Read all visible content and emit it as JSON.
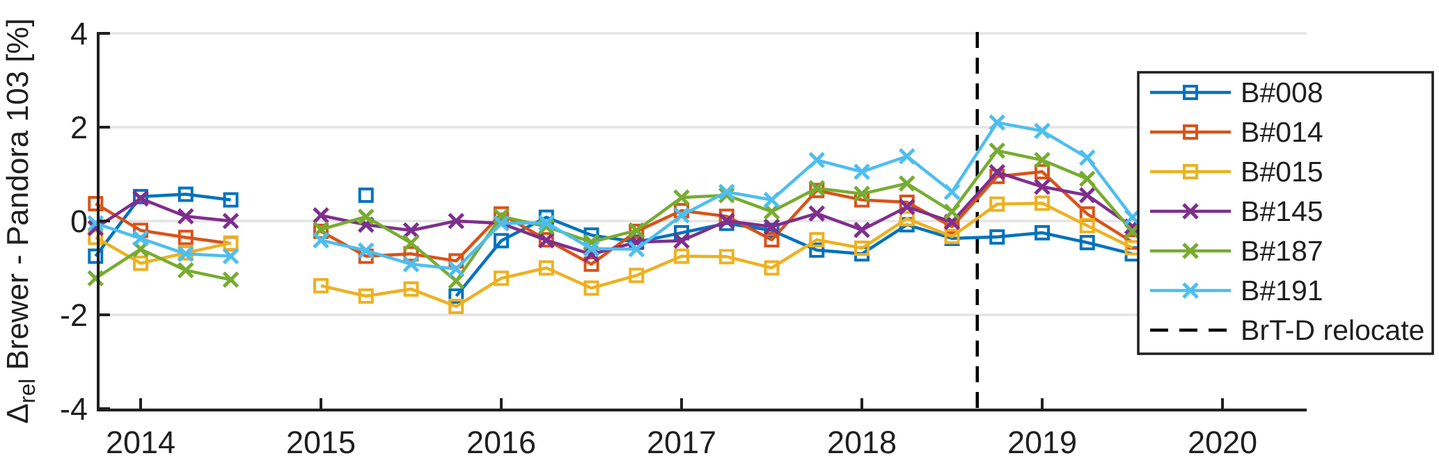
{
  "chart_data": {
    "type": "line",
    "title": "",
    "xlabel": "",
    "ylabel": "Δ_rel Brewer - Pandora 103 [%]",
    "ylabel_parts": {
      "delta": "Δ",
      "subscript": "rel",
      "rest": " Brewer - Pandora 103 [%]"
    },
    "x_ticks": [
      2014,
      2015,
      2016,
      2017,
      2018,
      2019,
      2020
    ],
    "y_ticks": [
      -4,
      -2,
      0,
      2,
      4
    ],
    "xlim": [
      2013.75,
      2020.47
    ],
    "ylim": [
      -4.03,
      4.01
    ],
    "grid": "horizontal-only",
    "legend_position": "right-inside",
    "colors": {
      "axis": "#1f1f1f",
      "grid": "#e4e4e4",
      "vline": "#000000",
      "legend_border": "#1f1f1f",
      "legend_bg": "#ffffff"
    },
    "vline": {
      "x": 2018.64,
      "label": "BrT-D relocate",
      "style": "dashed",
      "color": "#000000"
    },
    "series": [
      {
        "name": "B#008",
        "color": "#0072BD",
        "marker": "square",
        "x": [
          2013.75,
          2014.0,
          2014.25,
          2014.5,
          2015.25,
          2015.75,
          2016.0,
          2016.25,
          2016.5,
          2016.75,
          2017.0,
          2017.25,
          2017.5,
          2017.75,
          2018.0,
          2018.25,
          2018.5,
          2018.75,
          2019.0,
          2019.25,
          2019.5
        ],
        "y": [
          -0.75,
          0.52,
          0.57,
          0.45,
          0.55,
          -1.6,
          -0.42,
          0.08,
          -0.3,
          -0.45,
          -0.25,
          -0.05,
          -0.2,
          -0.62,
          -0.7,
          -0.08,
          -0.37,
          -0.34,
          -0.25,
          -0.46,
          -0.7
        ]
      },
      {
        "name": "B#014",
        "color": "#D95319",
        "marker": "square",
        "x": [
          2013.75,
          2014.0,
          2014.25,
          2014.5,
          2015.0,
          2015.25,
          2015.5,
          2015.75,
          2016.0,
          2016.25,
          2016.5,
          2016.75,
          2017.0,
          2017.25,
          2017.5,
          2017.75,
          2018.0,
          2018.25,
          2018.5,
          2018.75,
          2019.0,
          2019.25,
          2019.5
        ],
        "y": [
          0.37,
          -0.2,
          -0.35,
          -0.48,
          -0.22,
          -0.75,
          -0.7,
          -0.85,
          0.15,
          -0.4,
          -0.92,
          -0.22,
          0.22,
          0.1,
          -0.4,
          0.65,
          0.45,
          0.4,
          -0.12,
          0.95,
          1.05,
          0.15,
          -0.45
        ]
      },
      {
        "name": "B#015",
        "color": "#EDB120",
        "marker": "square",
        "x": [
          2013.75,
          2014.0,
          2014.25,
          2014.5,
          2015.0,
          2015.25,
          2015.5,
          2015.75,
          2016.0,
          2016.25,
          2016.5,
          2016.75,
          2017.0,
          2017.25,
          2017.5,
          2017.75,
          2018.0,
          2018.25,
          2018.5,
          2018.75,
          2019.0,
          2019.25,
          2019.5
        ],
        "y": [
          -0.35,
          -0.9,
          -0.68,
          -0.47,
          -1.38,
          -1.6,
          -1.45,
          -1.82,
          -1.22,
          -1.0,
          -1.43,
          -1.16,
          -0.75,
          -0.76,
          -1.0,
          -0.4,
          -0.58,
          0.05,
          -0.33,
          0.36,
          0.38,
          -0.1,
          -0.57
        ]
      },
      {
        "name": "B#145",
        "color": "#7E2F8E",
        "marker": "x",
        "x": [
          2013.75,
          2014.0,
          2014.25,
          2014.5,
          2015.0,
          2015.25,
          2015.5,
          2015.75,
          2016.0,
          2016.25,
          2016.5,
          2016.75,
          2017.0,
          2017.25,
          2017.5,
          2017.75,
          2018.0,
          2018.25,
          2018.5,
          2018.75,
          2019.0,
          2019.25,
          2019.5
        ],
        "y": [
          -0.15,
          0.48,
          0.1,
          0.0,
          0.12,
          -0.08,
          -0.2,
          0.0,
          -0.05,
          -0.41,
          -0.71,
          -0.45,
          -0.42,
          0.0,
          -0.12,
          0.16,
          -0.19,
          0.3,
          -0.02,
          1.04,
          0.73,
          0.55,
          -0.12
        ]
      },
      {
        "name": "B#187",
        "color": "#77AC30",
        "marker": "x",
        "x": [
          2013.75,
          2014.0,
          2014.25,
          2014.5,
          2015.0,
          2015.25,
          2015.5,
          2015.75,
          2016.0,
          2016.25,
          2016.5,
          2016.75,
          2017.0,
          2017.25,
          2017.5,
          2017.75,
          2018.0,
          2018.25,
          2018.5,
          2018.75,
          2019.0,
          2019.25,
          2019.5
        ],
        "y": [
          -1.22,
          -0.6,
          -1.05,
          -1.25,
          -0.18,
          0.09,
          -0.47,
          -1.28,
          0.1,
          -0.12,
          -0.45,
          -0.2,
          0.5,
          0.55,
          0.2,
          0.7,
          0.58,
          0.8,
          0.2,
          1.5,
          1.3,
          0.9,
          -0.22
        ]
      },
      {
        "name": "B#191",
        "color": "#4DBEEE",
        "marker": "x",
        "x": [
          2013.75,
          2014.0,
          2014.25,
          2014.5,
          2015.0,
          2015.25,
          2015.5,
          2015.75,
          2016.0,
          2016.25,
          2016.5,
          2016.75,
          2017.0,
          2017.25,
          2017.5,
          2017.75,
          2018.0,
          2018.25,
          2018.5,
          2018.75,
          2019.0,
          2019.25,
          2019.5
        ],
        "y": [
          -0.05,
          -0.37,
          -0.7,
          -0.75,
          -0.41,
          -0.63,
          -0.92,
          -1.02,
          -0.05,
          -0.04,
          -0.59,
          -0.6,
          0.12,
          0.62,
          0.45,
          1.3,
          1.05,
          1.38,
          0.62,
          2.1,
          1.92,
          1.35,
          0.08
        ]
      }
    ],
    "legend_entries": [
      "B#008",
      "B#014",
      "B#015",
      "B#145",
      "B#187",
      "B#191",
      "BrT-D relocate"
    ]
  }
}
